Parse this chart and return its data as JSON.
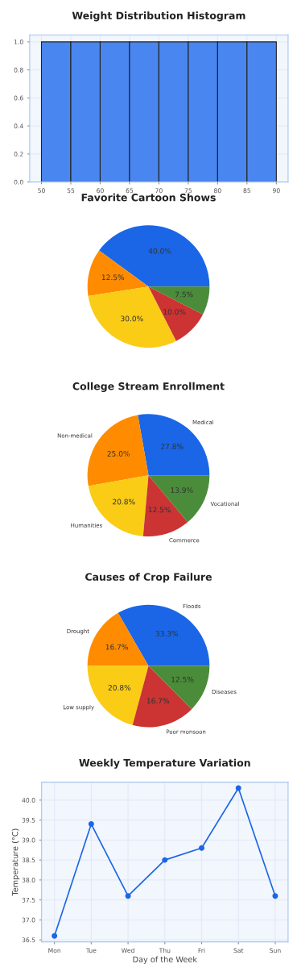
{
  "chart_data": [
    {
      "type": "histogram",
      "title": "Weight Distribution Histogram",
      "bins": [
        50,
        55,
        60,
        65,
        70,
        75,
        80,
        85,
        90
      ],
      "values": [
        1,
        1,
        1,
        1,
        1,
        1,
        1,
        1
      ],
      "color": "#4a86ef",
      "xlim": [
        48,
        92
      ],
      "ylim": [
        0,
        1.05
      ],
      "xticks": [
        50,
        55,
        60,
        65,
        70,
        75,
        80,
        85,
        90
      ],
      "yticks": [
        {
          "value": 0,
          "label": "0.0"
        },
        {
          "value": 0.2,
          "label": "0.2"
        },
        {
          "value": 0.4,
          "label": "0.4"
        },
        {
          "value": 0.6,
          "label": "0.6"
        },
        {
          "value": 0.8,
          "label": "0.8"
        },
        {
          "value": 1.0,
          "label": "1.0"
        }
      ],
      "grid": true
    },
    {
      "type": "pie",
      "title": "Favorite Cartoon Shows",
      "categories": [
        null,
        null,
        null,
        null,
        null
      ],
      "values": [
        40.0,
        12.5,
        30.0,
        10.0,
        7.5
      ],
      "colors": [
        "#1a66e6",
        "#ff8c00",
        "#facc15",
        "#cc3333",
        "#4a8c3a"
      ],
      "value_labels": [
        "40.0%",
        "12.5%",
        "30.0%",
        "10.0%",
        "7.5%"
      ]
    },
    {
      "type": "pie",
      "title": "College Stream Enrollment",
      "categories": [
        "Medical",
        "Non-medical",
        "Humanities",
        "Commerce",
        "Vocational"
      ],
      "values": [
        27.8,
        25.0,
        20.8,
        12.5,
        13.9
      ],
      "colors": [
        "#1a66e6",
        "#ff8c00",
        "#facc15",
        "#cc3333",
        "#4a8c3a"
      ],
      "value_labels": [
        "27.8%",
        "25.0%",
        "20.8%",
        "12.5%",
        "13.9%"
      ]
    },
    {
      "type": "pie",
      "title": "Causes of Crop Failure",
      "categories": [
        "Floods",
        "Drought",
        "Low supply",
        "Poor monsoon",
        "Diseases"
      ],
      "values": [
        33.3,
        16.7,
        20.8,
        16.7,
        12.5
      ],
      "colors": [
        "#1a66e6",
        "#ff8c00",
        "#facc15",
        "#cc3333",
        "#4a8c3a"
      ],
      "value_labels": [
        "33.3%",
        "16.7%",
        "20.8%",
        "16.7%",
        "12.5%"
      ]
    },
    {
      "type": "line",
      "title": "Weekly Temperature Variation",
      "xlabel": "Day of the Week",
      "ylabel": "Temperature (°C)",
      "categories": [
        "Mon",
        "Tue",
        "Wed",
        "Thu",
        "Fri",
        "Sat",
        "Sun"
      ],
      "values": [
        36.6,
        39.4,
        37.6,
        38.5,
        38.8,
        40.3,
        37.6
      ],
      "color": "#1a66e6",
      "marker": "circle",
      "ylim": [
        36.45,
        40.45
      ],
      "yticks": [
        {
          "value": 36.5,
          "label": "36.5"
        },
        {
          "value": 37.0,
          "label": "37.0"
        },
        {
          "value": 37.5,
          "label": "37.5"
        },
        {
          "value": 38.0,
          "label": "38.0"
        },
        {
          "value": 38.5,
          "label": "38.5"
        },
        {
          "value": 39.0,
          "label": "39.0"
        },
        {
          "value": 39.5,
          "label": "39.5"
        },
        {
          "value": 40.0,
          "label": "40.0"
        }
      ],
      "grid": true
    }
  ]
}
